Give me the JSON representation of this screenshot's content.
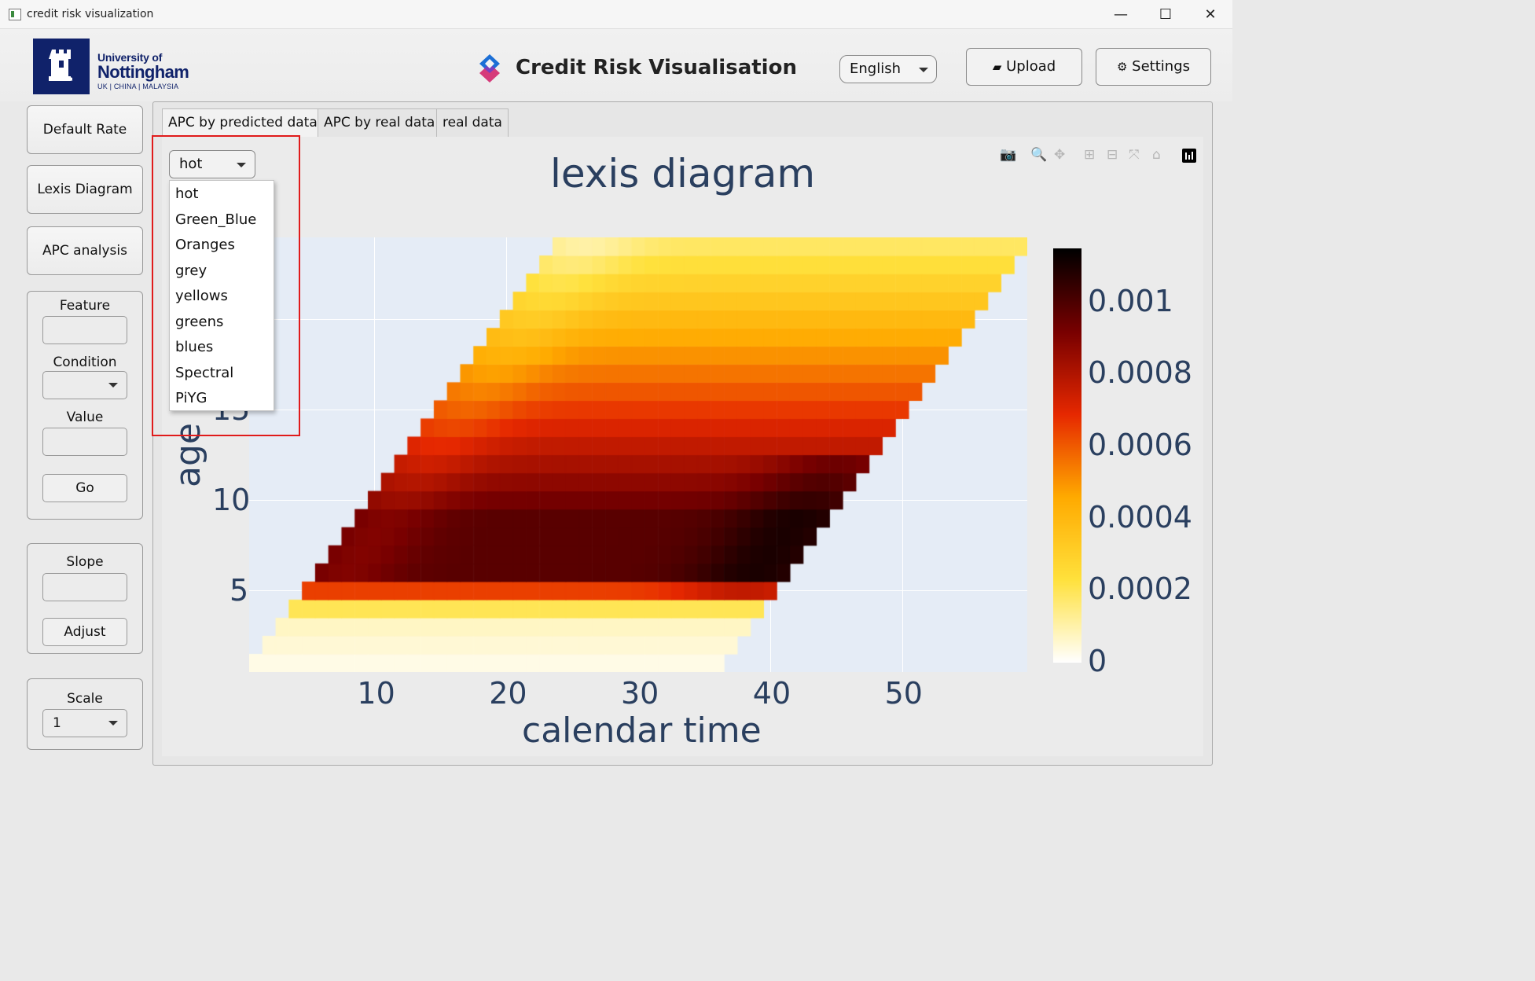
{
  "window": {
    "title": "credit risk visualization",
    "minimize": "—",
    "maximize": "☐",
    "close": "✕"
  },
  "header": {
    "university_line1": "University of",
    "university_line2": "Nottingham",
    "university_line3": "UK | CHINA | MALAYSIA",
    "app_title": "Credit Risk Visualisation",
    "language": "English",
    "upload_label": "Upload",
    "settings_label": "Settings"
  },
  "sidebar": {
    "default_rate": "Default Rate",
    "lexis_diagram": "Lexis Diagram",
    "apc_analysis": "APC analysis",
    "feature_label": "Feature",
    "condition_label": "Condition",
    "value_label": "Value",
    "go_label": "Go",
    "slope_label": "Slope",
    "adjust_label": "Adjust",
    "scale_label": "Scale",
    "scale_value": "1"
  },
  "tabs": [
    {
      "label": "APC by predicted data",
      "active": true
    },
    {
      "label": "APC by real data",
      "active": false
    },
    {
      "label": "real data",
      "active": false
    }
  ],
  "colormap": {
    "selected": "hot",
    "options": [
      "hot",
      "Green_Blue",
      "Oranges",
      "grey",
      "yellows",
      "greens",
      "blues",
      "Spectral",
      "PiYG"
    ]
  },
  "modebar": [
    "camera-icon",
    "zoom-icon",
    "pan-icon",
    "zoom-in-icon",
    "zoom-out-icon",
    "autoscale-icon",
    "reset-axes-icon",
    "plotly-logo-icon"
  ],
  "chart_data": {
    "type": "heatmap",
    "title": "lexis diagram",
    "xlabel": "calendar time",
    "ylabel": "age",
    "x_ticks": [
      "10",
      "20",
      "30",
      "40",
      "50"
    ],
    "y_ticks": [
      "5",
      "10",
      "15"
    ],
    "x_range": [
      1,
      59
    ],
    "y_range": [
      1,
      24
    ],
    "colorscale": "hot (reversed: white → yellow → red → black)",
    "colorbar_ticks": [
      "0",
      "0.0002",
      "0.0004",
      "0.0006",
      "0.0008",
      "0.001"
    ],
    "z_range": [
      0,
      0.00115
    ],
    "description_of_values": "Parallelogram region: cells exist where period - age is between 0 and about 35 (age 1 spans calendar time 1–36, age 24 spans 24–59). Values near 0 for ages 1–3, rising sharply around age 5, peaking (~0.0011) at ages 7–9 near calendar time 40, then decreasing toward ~0.0002 at age 24."
  }
}
